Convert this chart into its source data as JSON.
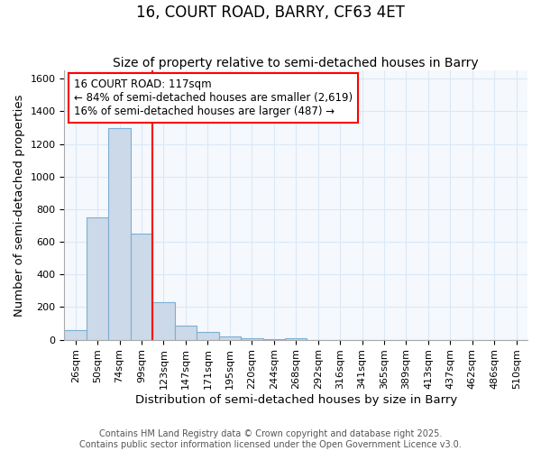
{
  "title": "16, COURT ROAD, BARRY, CF63 4ET",
  "subtitle": "Size of property relative to semi-detached houses in Barry",
  "xlabel": "Distribution of semi-detached houses by size in Barry",
  "ylabel": "Number of semi-detached properties",
  "bar_color": "#ccd9e8",
  "bar_edge_color": "#7bafd4",
  "categories": [
    "26sqm",
    "50sqm",
    "74sqm",
    "99sqm",
    "123sqm",
    "147sqm",
    "171sqm",
    "195sqm",
    "220sqm",
    "244sqm",
    "268sqm",
    "292sqm",
    "316sqm",
    "341sqm",
    "365sqm",
    "389sqm",
    "413sqm",
    "437sqm",
    "462sqm",
    "486sqm",
    "510sqm"
  ],
  "values": [
    60,
    750,
    1295,
    650,
    230,
    85,
    45,
    20,
    10,
    5,
    10,
    0,
    0,
    0,
    0,
    0,
    0,
    0,
    0,
    0,
    0
  ],
  "redline_index": 4,
  "annotation_line1": "16 COURT ROAD: 117sqm",
  "annotation_line2": "← 84% of semi-detached houses are smaller (2,619)",
  "annotation_line3": "16% of semi-detached houses are larger (487) →",
  "ylim": [
    0,
    1650
  ],
  "yticks": [
    0,
    200,
    400,
    600,
    800,
    1000,
    1200,
    1400,
    1600
  ],
  "footnote1": "Contains HM Land Registry data © Crown copyright and database right 2025.",
  "footnote2": "Contains public sector information licensed under the Open Government Licence v3.0.",
  "bg_color": "#f5f8fc",
  "grid_color": "#dce8f5",
  "title_fontsize": 12,
  "subtitle_fontsize": 10,
  "axis_label_fontsize": 9.5,
  "tick_fontsize": 8,
  "annotation_fontsize": 8.5,
  "footnote_fontsize": 7
}
